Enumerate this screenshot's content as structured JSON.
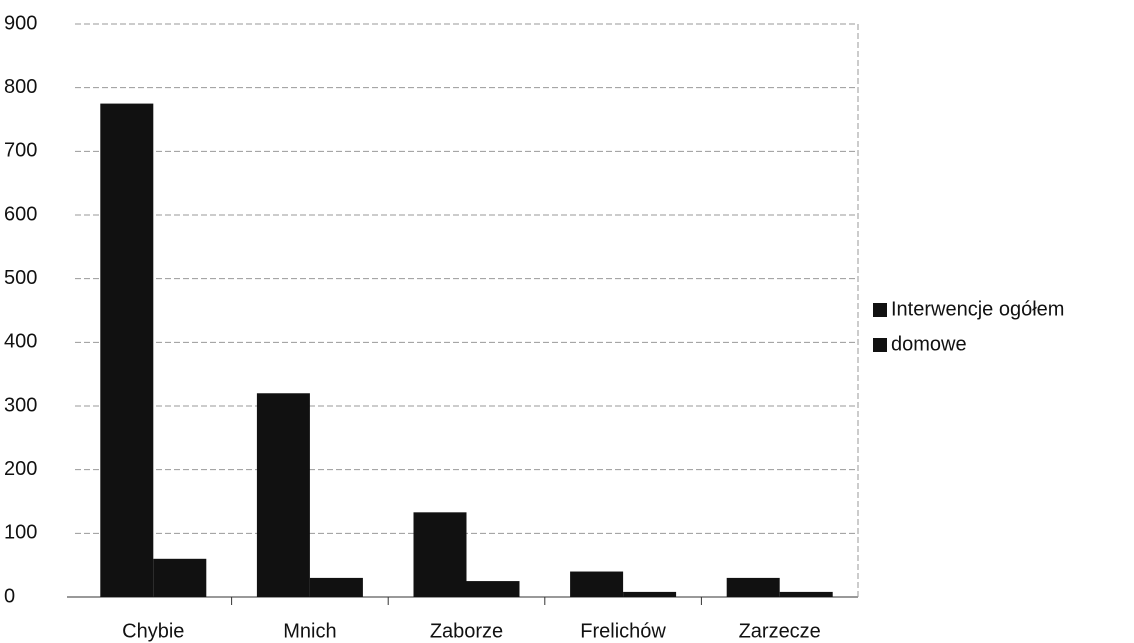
{
  "chart_data": {
    "type": "bar",
    "categories": [
      "Chybie",
      "Mnich",
      "Zaborze",
      "Frelichów",
      "Zarzecze"
    ],
    "series": [
      {
        "name": "Interwencje ogółem",
        "color": "#111111",
        "values": [
          775,
          320,
          133,
          40,
          30
        ]
      },
      {
        "name": "domowe",
        "color": "#111111",
        "values": [
          60,
          30,
          25,
          8,
          8
        ]
      }
    ],
    "ylim": [
      0,
      900
    ],
    "yticks": [
      0,
      100,
      200,
      300,
      400,
      500,
      600,
      700,
      800,
      900
    ],
    "grid": true,
    "legend": "right"
  }
}
